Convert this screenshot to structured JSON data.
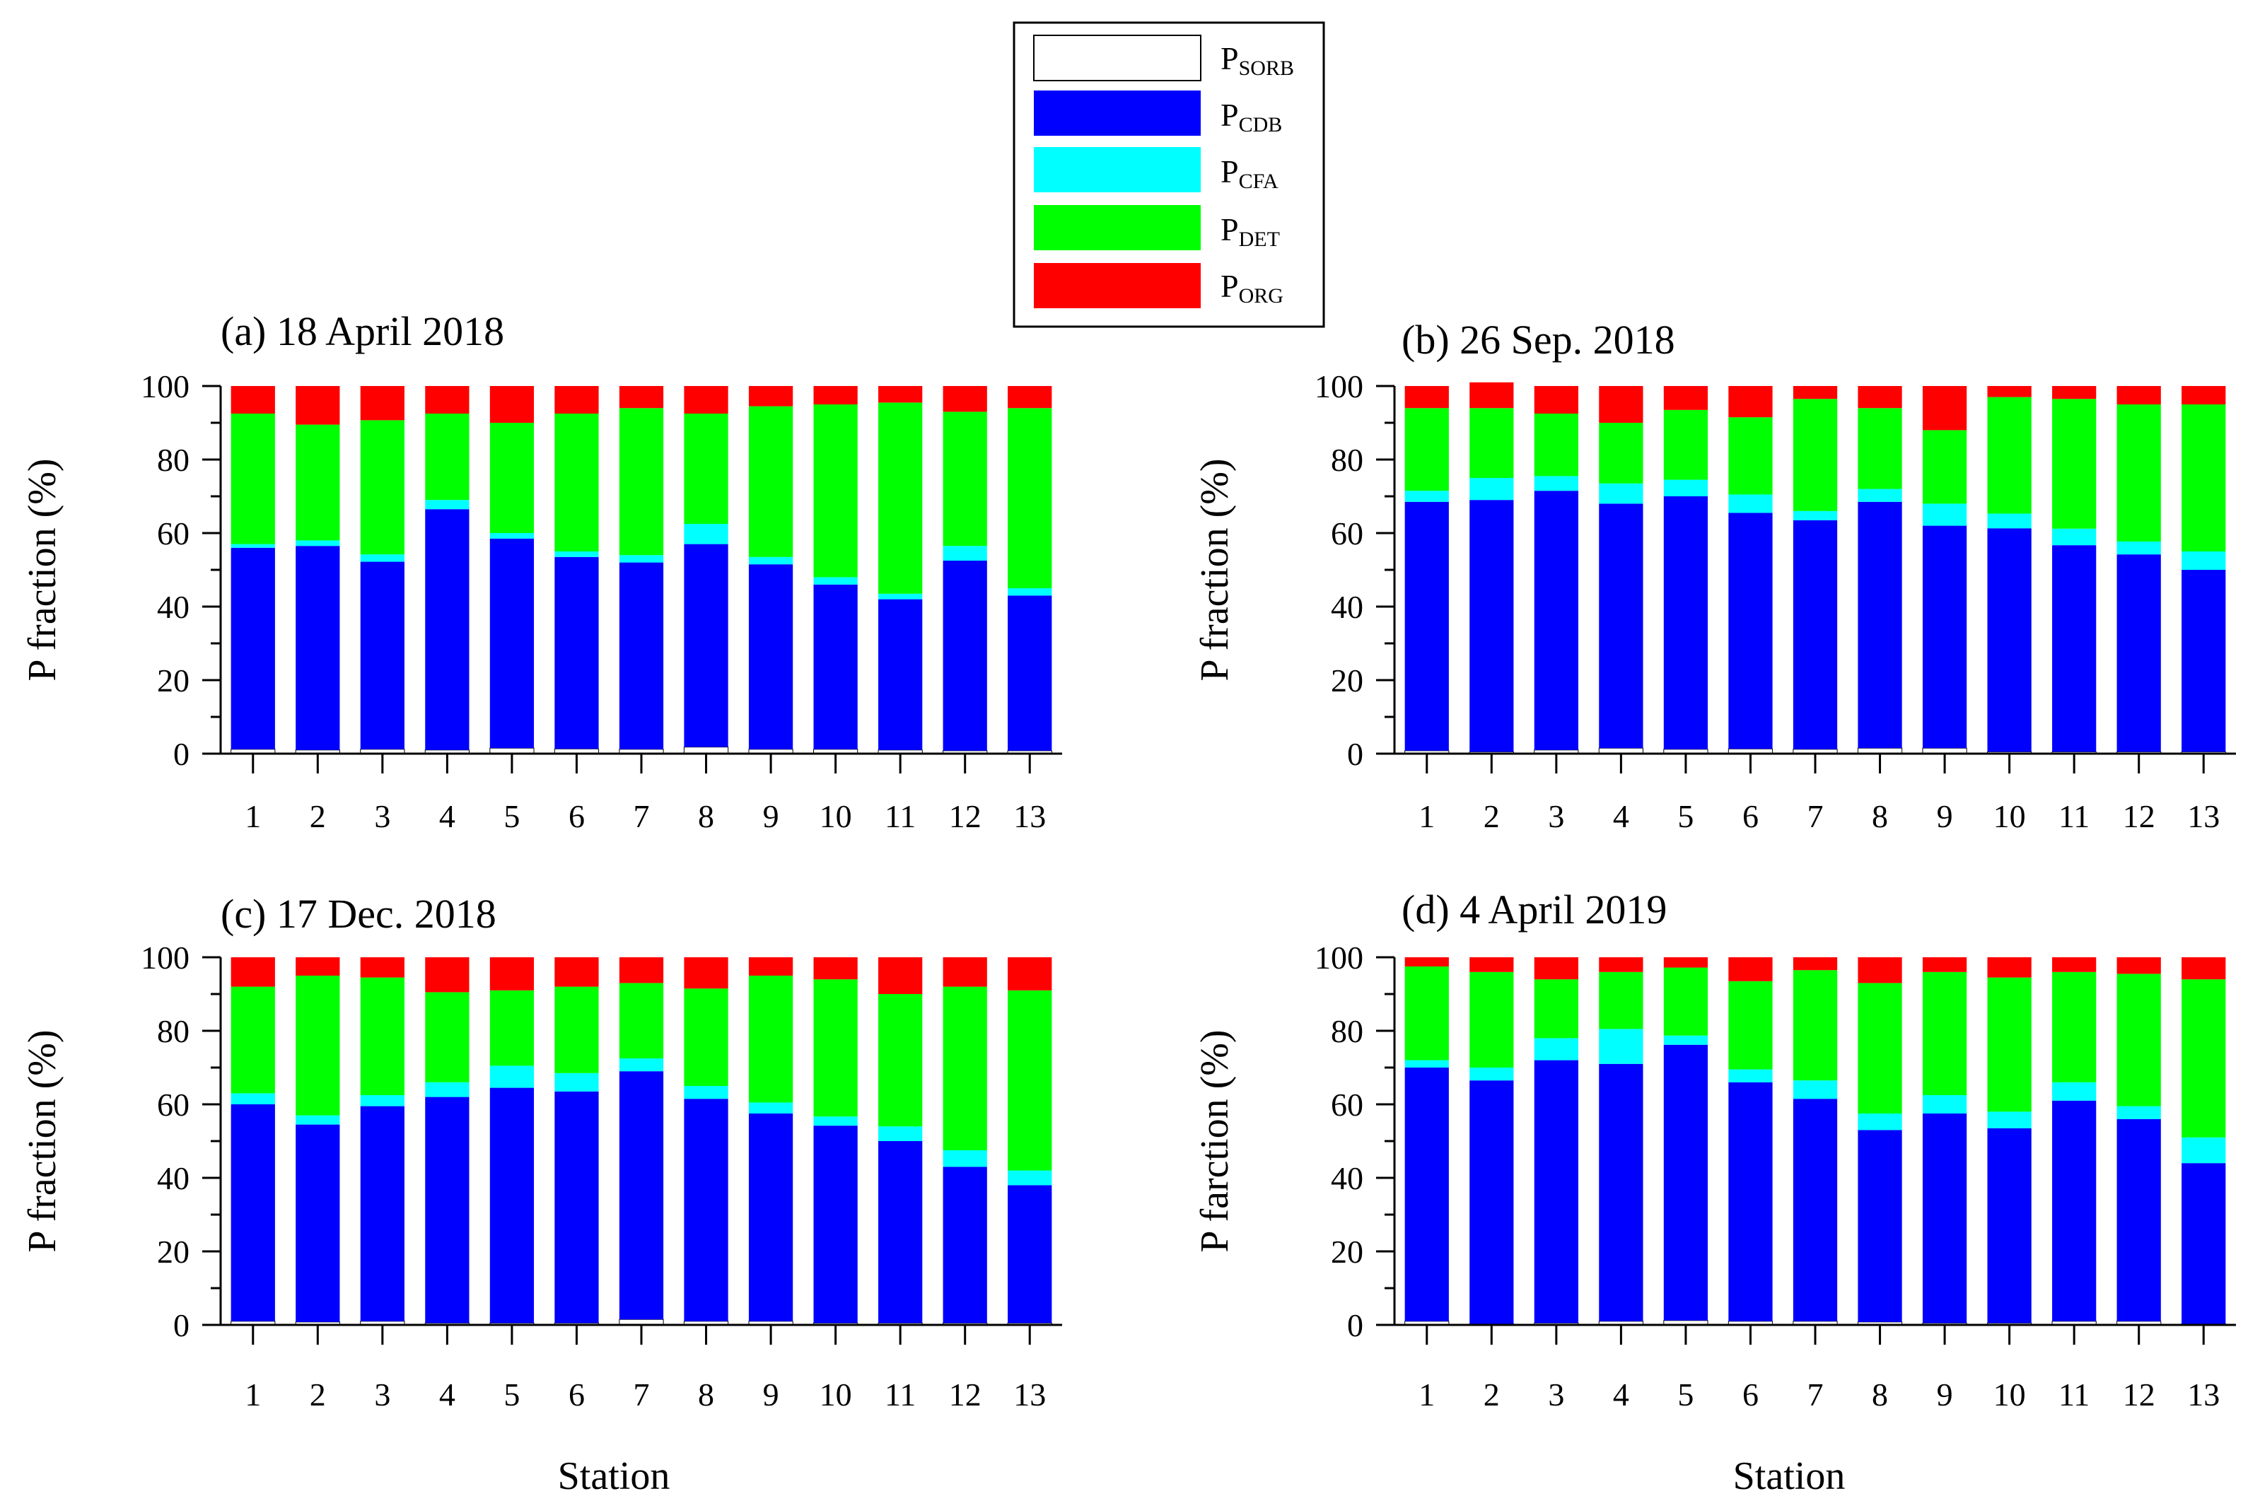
{
  "legend": [
    {
      "main": "P",
      "sub": "SORB"
    },
    {
      "main": "P",
      "sub": "CDB"
    },
    {
      "main": "P",
      "sub": "CFA"
    },
    {
      "main": "P",
      "sub": "DET"
    },
    {
      "main": "P",
      "sub": "ORG"
    }
  ],
  "colors": {
    "P_SORB": "#ffffff",
    "P_CDB": "#0000ff",
    "P_CFA": "#00ffff",
    "P_DET": "#00ff00",
    "P_ORG": "#ff0000"
  },
  "x_axis_title": "Station",
  "chart_data": [
    {
      "type": "bar",
      "stacked": true,
      "title": "(a) 18 April 2018",
      "xlabel": "Station",
      "ylabel": "P fraction (%)",
      "ylim": [
        0,
        100
      ],
      "yticks": [
        "0",
        "20",
        "40",
        "60",
        "80",
        "100"
      ],
      "categories": [
        "1",
        "2",
        "3",
        "4",
        "5",
        "6",
        "7",
        "8",
        "9",
        "10",
        "11",
        "12",
        "13"
      ],
      "series": [
        {
          "name": "P_SORB",
          "values": [
            1.2,
            1.0,
            1.2,
            1.0,
            1.5,
            1.3,
            1.2,
            1.8,
            1.2,
            1.2,
            1.0,
            0.8,
            0.8
          ]
        },
        {
          "name": "P_CDB",
          "values": [
            54.8,
            55.5,
            51.0,
            65.5,
            57.0,
            52.2,
            50.8,
            55.2,
            50.3,
            44.8,
            41.0,
            51.7,
            42.2
          ]
        },
        {
          "name": "P_CFA",
          "values": [
            1.0,
            1.5,
            2.0,
            2.5,
            1.5,
            1.5,
            2.0,
            5.5,
            2.0,
            2.0,
            1.5,
            4.0,
            2.0
          ]
        },
        {
          "name": "P_DET",
          "values": [
            35.5,
            31.5,
            36.5,
            23.5,
            30.0,
            37.5,
            40.0,
            30.0,
            41.0,
            47.0,
            52.0,
            36.5,
            49.0
          ]
        },
        {
          "name": "P_ORG",
          "values": [
            7.5,
            10.5,
            9.3,
            7.5,
            10.0,
            7.5,
            6.0,
            7.5,
            5.5,
            5.0,
            4.5,
            7.0,
            6.0
          ]
        }
      ]
    },
    {
      "type": "bar",
      "stacked": true,
      "title": "(b) 26 Sep. 2018",
      "xlabel": "Station",
      "ylabel": "P fraction (%)",
      "ylim": [
        0,
        100
      ],
      "yticks": [
        "0",
        "20",
        "40",
        "60",
        "80",
        "100"
      ],
      "categories": [
        "1",
        "2",
        "3",
        "4",
        "5",
        "6",
        "7",
        "8",
        "9",
        "10",
        "11",
        "12",
        "13"
      ],
      "series": [
        {
          "name": "P_SORB",
          "values": [
            0.8,
            0.5,
            1.0,
            1.5,
            1.2,
            1.3,
            1.2,
            1.5,
            1.5,
            0.5,
            0.5,
            0.5,
            0.5
          ]
        },
        {
          "name": "P_CDB",
          "values": [
            67.7,
            68.5,
            70.5,
            66.5,
            68.8,
            64.2,
            62.3,
            67.0,
            60.5,
            60.8,
            56.2,
            53.7,
            49.5
          ]
        },
        {
          "name": "P_CFA",
          "values": [
            3.0,
            6.0,
            4.0,
            5.5,
            4.5,
            5.0,
            2.5,
            3.5,
            6.0,
            4.0,
            4.5,
            3.5,
            5.0
          ]
        },
        {
          "name": "P_DET",
          "values": [
            22.5,
            19.0,
            17.0,
            16.5,
            19.0,
            21.0,
            30.5,
            22.0,
            20.0,
            31.7,
            35.3,
            37.3,
            40.0
          ]
        },
        {
          "name": "P_ORG",
          "values": [
            6.0,
            7.0,
            7.5,
            10.0,
            6.5,
            8.5,
            3.5,
            6.0,
            12.0,
            3.0,
            3.5,
            5.0,
            5.0
          ]
        }
      ]
    },
    {
      "type": "bar",
      "stacked": true,
      "title": "(c) 17 Dec. 2018",
      "xlabel": "Station",
      "ylabel": "P fraction (%)",
      "ylim": [
        0,
        100
      ],
      "yticks": [
        "0",
        "20",
        "40",
        "60",
        "80",
        "100"
      ],
      "categories": [
        "1",
        "2",
        "3",
        "4",
        "5",
        "6",
        "7",
        "8",
        "9",
        "10",
        "11",
        "12",
        "13"
      ],
      "series": [
        {
          "name": "P_SORB",
          "values": [
            1.0,
            0.8,
            1.0,
            0.5,
            0.5,
            0.5,
            1.5,
            1.0,
            1.0,
            0.5,
            0.5,
            0.5,
            0.5
          ]
        },
        {
          "name": "P_CDB",
          "values": [
            59.0,
            53.7,
            58.5,
            61.5,
            64.0,
            63.0,
            67.5,
            60.5,
            56.5,
            53.7,
            49.5,
            42.5,
            37.5
          ]
        },
        {
          "name": "P_CFA",
          "values": [
            3.0,
            2.5,
            3.0,
            4.0,
            6.0,
            5.0,
            3.5,
            3.5,
            3.0,
            2.5,
            4.0,
            4.5,
            4.0
          ]
        },
        {
          "name": "P_DET",
          "values": [
            29.0,
            38.0,
            32.0,
            24.5,
            20.5,
            23.5,
            20.5,
            26.5,
            34.5,
            37.3,
            36.0,
            44.5,
            49.0
          ]
        },
        {
          "name": "P_ORG",
          "values": [
            8.0,
            5.0,
            5.5,
            9.5,
            9.0,
            8.0,
            7.0,
            8.5,
            5.0,
            6.0,
            10.0,
            8.0,
            9.0
          ]
        }
      ]
    },
    {
      "type": "bar",
      "stacked": true,
      "title": "(d) 4 April 2019",
      "xlabel": "Station",
      "ylabel": "P farction (%)",
      "ylim": [
        0,
        100
      ],
      "yticks": [
        "0",
        "20",
        "40",
        "60",
        "80",
        "100"
      ],
      "categories": [
        "1",
        "2",
        "3",
        "4",
        "5",
        "6",
        "7",
        "8",
        "9",
        "10",
        "11",
        "12",
        "13"
      ],
      "series": [
        {
          "name": "P_SORB",
          "values": [
            1.0,
            0.3,
            0.5,
            1.0,
            1.2,
            1.0,
            1.0,
            0.8,
            0.5,
            0.5,
            1.0,
            1.0,
            0.3
          ]
        },
        {
          "name": "P_CDB",
          "values": [
            69.0,
            66.2,
            71.5,
            70.0,
            75.0,
            65.0,
            60.5,
            52.2,
            57.0,
            53.0,
            60.0,
            55.0,
            43.7
          ]
        },
        {
          "name": "P_CFA",
          "values": [
            2.0,
            3.5,
            6.0,
            9.5,
            2.5,
            3.5,
            5.0,
            4.5,
            5.0,
            4.5,
            5.0,
            3.5,
            7.0
          ]
        },
        {
          "name": "P_DET",
          "values": [
            25.5,
            26.0,
            16.0,
            15.5,
            18.5,
            24.0,
            30.0,
            35.5,
            33.5,
            36.5,
            30.0,
            36.0,
            43.0
          ]
        },
        {
          "name": "P_ORG",
          "values": [
            2.5,
            4.0,
            6.0,
            4.0,
            2.8,
            6.5,
            3.5,
            7.0,
            4.0,
            5.5,
            4.0,
            4.5,
            6.0
          ]
        }
      ]
    }
  ]
}
